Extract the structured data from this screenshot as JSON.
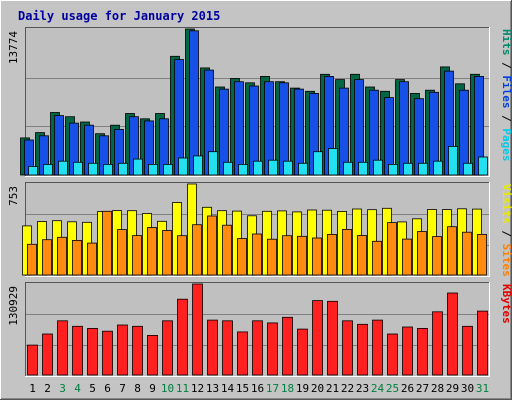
{
  "chart_data": {
    "type": "bar",
    "title": "Daily usage for January 2015",
    "categories": [
      "1",
      "2",
      "3",
      "4",
      "5",
      "6",
      "7",
      "8",
      "9",
      "10",
      "11",
      "12",
      "13",
      "14",
      "15",
      "16",
      "17",
      "18",
      "19",
      "20",
      "21",
      "22",
      "23",
      "24",
      "25",
      "26",
      "27",
      "28",
      "29",
      "30",
      "31"
    ],
    "weekend_days": [
      "3",
      "4",
      "10",
      "11",
      "17",
      "18",
      "24",
      "25",
      "31"
    ],
    "panels": [
      {
        "name": "hits_files_pages",
        "max_label": "13774",
        "ylim": [
          0,
          13774
        ],
        "grid": true,
        "legend": "right",
        "legend_items": [
          {
            "text": "Pages",
            "color": "#00c8e8"
          },
          {
            "text": "Files",
            "color": "#0040e0"
          },
          {
            "text": "Hits",
            "color": "#008a6e"
          }
        ],
        "series": [
          {
            "name": "Hits",
            "color": "#006644",
            "values": [
              3500,
              4000,
              5900,
              5500,
              5000,
              3900,
              4700,
              5800,
              5300,
              5800,
              11200,
              13774,
              10100,
              8300,
              9100,
              8700,
              9300,
              8800,
              8200,
              7900,
              9500,
              9000,
              9500,
              8300,
              7900,
              9000,
              7700,
              8000,
              10200,
              8600,
              9500
            ]
          },
          {
            "name": "Files",
            "color": "#1650e6",
            "values": [
              3300,
              3700,
              5600,
              4900,
              4700,
              3700,
              4300,
              5500,
              5100,
              5300,
              10900,
              13600,
              9900,
              8100,
              8800,
              8400,
              8800,
              8700,
              8100,
              7700,
              9300,
              8200,
              9000,
              8000,
              7300,
              8800,
              7200,
              7800,
              9800,
              8000,
              9300
            ]
          },
          {
            "name": "Pages",
            "color": "#22e0f0",
            "values": [
              800,
              1000,
              1300,
              1200,
              1100,
              1000,
              1100,
              1500,
              1000,
              1000,
              1600,
              1800,
              2200,
              1200,
              1000,
              1300,
              1400,
              1300,
              1100,
              2200,
              2500,
              1200,
              1200,
              1400,
              1000,
              1100,
              1100,
              1300,
              2700,
              1100,
              1700
            ]
          }
        ]
      },
      {
        "name": "visits_sites",
        "max_label": "753",
        "ylim": [
          0,
          753
        ],
        "grid": true,
        "legend": "right",
        "legend_items": [
          {
            "text": "Sites",
            "color": "#ff8000"
          },
          {
            "text": "Visits",
            "color": "#e8e800"
          }
        ],
        "series": [
          {
            "name": "Visits",
            "color": "#ffff00",
            "values": [
              406,
              443,
              449,
              440,
              436,
              525,
              533,
              532,
              509,
              444,
              600,
              753,
              560,
              532,
              529,
              490,
              527,
              530,
              522,
              538,
              536,
              526,
              546,
              540,
              552,
              439,
              465,
              542,
              541,
              548,
              545
            ]
          },
          {
            "name": "Sites",
            "color": "#ff8c10",
            "values": [
              254,
              292,
              312,
              286,
              264,
              527,
              376,
              326,
              393,
              368,
              325,
              416,
              488,
              412,
              302,
              339,
              296,
              325,
              320,
              306,
              336,
              377,
              327,
              279,
              434,
              297,
              360,
              318,
              400,
              354,
              336
            ]
          }
        ]
      },
      {
        "name": "kbytes",
        "max_label": "130929",
        "ylim": [
          0,
          130929
        ],
        "grid": true,
        "legend": "right",
        "legend_items": [
          {
            "text": "KBytes",
            "color": "#e00000"
          }
        ],
        "series": [
          {
            "name": "KBytes",
            "color": "#ff2020",
            "values": [
              43000,
              59000,
              78000,
              70000,
              67000,
              63000,
              72000,
              70000,
              57000,
              78000,
              109000,
              130929,
              79000,
              78000,
              62000,
              78000,
              75000,
              83000,
              66000,
              107000,
              106000,
              78000,
              73000,
              79000,
              59000,
              69000,
              67000,
              91000,
              118000,
              70000,
              92000
            ]
          }
        ]
      }
    ]
  }
}
